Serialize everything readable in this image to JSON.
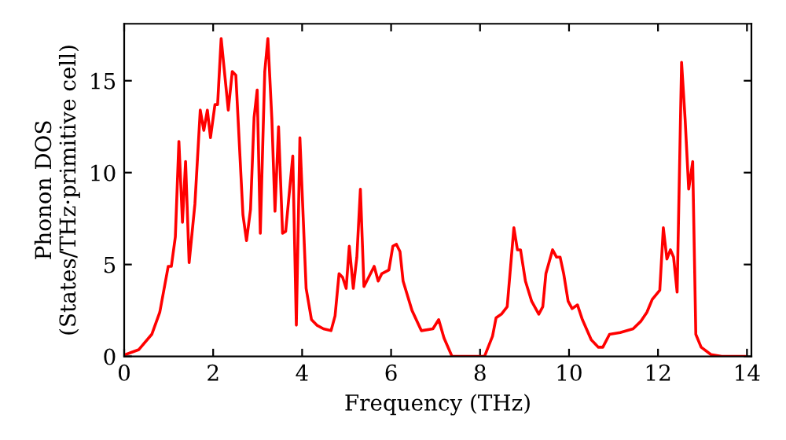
{
  "chart_data": {
    "type": "line",
    "xlabel": "Frequency (THz)",
    "ylabel": "Phonon DOS\n(States/THz·primitive cell)",
    "xlim": [
      0,
      14.1
    ],
    "ylim": [
      0,
      18.1
    ],
    "xticks": [
      0,
      2,
      4,
      6,
      8,
      10,
      12,
      14
    ],
    "yticks": [
      0,
      5,
      10,
      15
    ],
    "grid": false,
    "legend": false,
    "series": [
      {
        "color": "#ff0000",
        "x": [
          0.03,
          0.33,
          0.62,
          0.8,
          0.99,
          1.06,
          1.15,
          1.23,
          1.31,
          1.38,
          1.46,
          1.59,
          1.71,
          1.79,
          1.87,
          1.94,
          2.04,
          2.1,
          2.18,
          2.34,
          2.43,
          2.51,
          2.67,
          2.75,
          2.84,
          2.92,
          2.99,
          3.06,
          3.16,
          3.23,
          3.32,
          3.39,
          3.47,
          3.56,
          3.63,
          3.79,
          3.87,
          3.95,
          4.09,
          4.21,
          4.33,
          4.48,
          4.65,
          4.74,
          4.83,
          4.91,
          4.99,
          5.06,
          5.15,
          5.23,
          5.31,
          5.39,
          5.62,
          5.71,
          5.79,
          5.95,
          6.04,
          6.12,
          6.2,
          6.27,
          6.47,
          6.68,
          6.94,
          7.07,
          7.19,
          7.37,
          8.1,
          8.28,
          8.36,
          8.48,
          8.61,
          8.76,
          8.84,
          8.91,
          9.02,
          9.16,
          9.32,
          9.41,
          9.48,
          9.63,
          9.72,
          9.8,
          9.88,
          9.98,
          10.07,
          10.19,
          10.3,
          10.5,
          10.66,
          10.76,
          10.91,
          11.15,
          11.44,
          11.61,
          11.75,
          11.87,
          12.04,
          12.12,
          12.2,
          12.28,
          12.35,
          12.43,
          12.53,
          12.61,
          12.69,
          12.78,
          12.85,
          12.97,
          13.19,
          13.43,
          13.95
        ],
        "values": [
          0.1,
          0.37,
          1.2,
          2.4,
          4.9,
          4.9,
          6.5,
          11.7,
          7.3,
          10.6,
          5.1,
          8.3,
          13.4,
          12.3,
          13.4,
          11.9,
          13.7,
          13.7,
          17.3,
          13.4,
          15.5,
          15.3,
          7.7,
          6.3,
          8.0,
          13.0,
          14.5,
          6.7,
          15.5,
          17.3,
          12.9,
          7.9,
          12.5,
          6.7,
          6.8,
          10.9,
          1.7,
          11.9,
          3.7,
          2.0,
          1.7,
          1.5,
          1.4,
          2.2,
          4.5,
          4.3,
          3.7,
          6.0,
          3.7,
          5.4,
          9.1,
          3.8,
          4.9,
          4.1,
          4.5,
          4.7,
          6.0,
          6.1,
          5.7,
          4.1,
          2.5,
          1.4,
          1.5,
          2.0,
          1.0,
          0.0,
          0.0,
          1.1,
          2.1,
          2.3,
          2.7,
          7.0,
          5.8,
          5.8,
          4.1,
          3.0,
          2.3,
          2.7,
          4.5,
          5.8,
          5.4,
          5.4,
          4.5,
          3.0,
          2.6,
          2.8,
          2.0,
          0.9,
          0.5,
          0.5,
          1.2,
          1.3,
          1.5,
          1.9,
          2.4,
          3.1,
          3.6,
          7.0,
          5.3,
          5.8,
          5.4,
          3.5,
          16.0,
          12.9,
          9.1,
          10.6,
          1.2,
          0.5,
          0.1,
          0.0,
          0.0
        ]
      }
    ]
  }
}
